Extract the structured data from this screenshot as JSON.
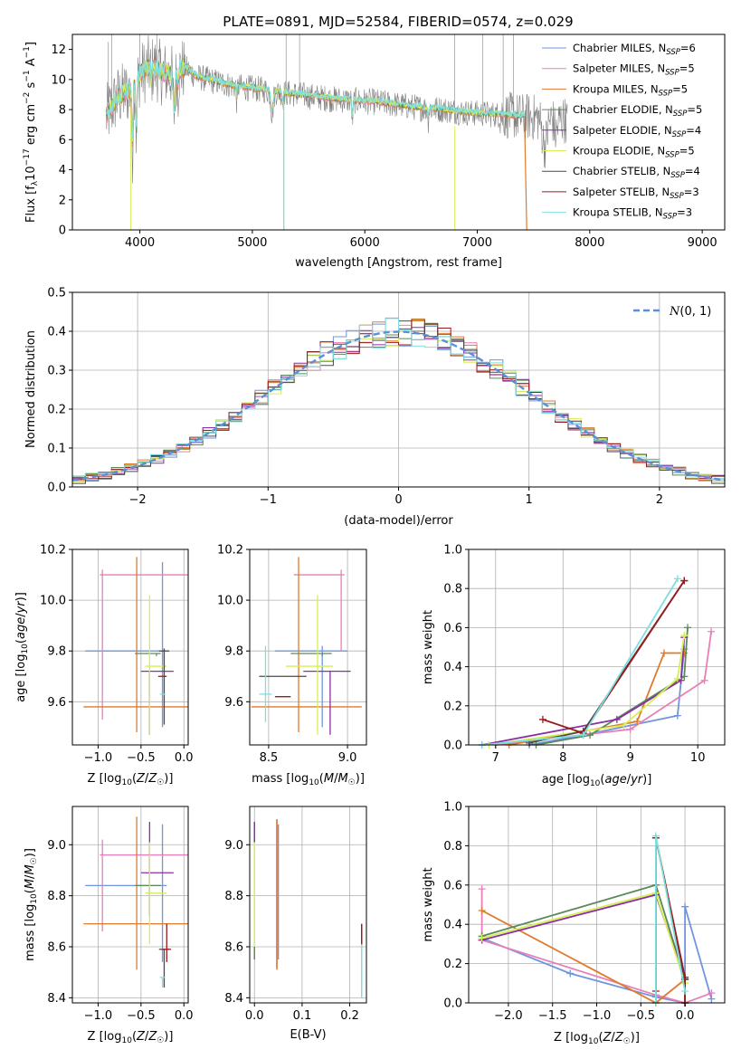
{
  "figure_title": "PLATE=0891, MJD=52584, FIBERID=0574, z=0.029",
  "colors": {
    "chabrier_miles": "#6f95e0",
    "salpeter_miles": "#e87fb8",
    "kroupa_miles": "#e07a2c",
    "chabrier_elodie": "#5a8a5a",
    "salpeter_elodie": "#8b2fa5",
    "kroupa_elodie": "#d6ef53",
    "chabrier_stelib": "#4a4a4a",
    "salpeter_stelib": "#9b1b1b",
    "kroupa_stelib": "#7fdfe0",
    "data_gray": "#808080",
    "normal_curve": "#5b8fd6",
    "grid": "#b0b0b0"
  },
  "chart_data": [
    {
      "id": "spectrum",
      "type": "line",
      "xlabel": "wavelength [Angstrom, rest frame]",
      "ylabel": "Flux [f_λ 10^-17 erg cm^-2 s^-1 A^-1]",
      "xlim": [
        3400,
        9200
      ],
      "ylim": [
        0,
        13
      ],
      "xticks": [
        "4000",
        "5000",
        "6000",
        "7000",
        "8000",
        "9000"
      ],
      "yticks": [
        "0",
        "2",
        "4",
        "6",
        "8",
        "10",
        "12"
      ],
      "grid": false,
      "legend_position": "top-right",
      "legend": [
        {
          "text": "Chabrier MILES, N",
          "sub": "SSP",
          "tail": "=6",
          "color_key": "chabrier_miles"
        },
        {
          "text": "Salpeter MILES, N",
          "sub": "SSP",
          "tail": "=5",
          "color_key": "salpeter_miles"
        },
        {
          "text": "Kroupa MILES, N",
          "sub": "SSP",
          "tail": "=5",
          "color_key": "kroupa_miles"
        },
        {
          "text": "Chabrier ELODIE, N",
          "sub": "SSP",
          "tail": "=5",
          "color_key": "chabrier_elodie"
        },
        {
          "text": "Salpeter ELODIE, N",
          "sub": "SSP",
          "tail": "=4",
          "color_key": "salpeter_elodie"
        },
        {
          "text": "Kroupa ELODIE, N",
          "sub": "SSP",
          "tail": "=5",
          "color_key": "kroupa_elodie"
        },
        {
          "text": "Chabrier STELIB, N",
          "sub": "SSP",
          "tail": "=4",
          "color_key": "chabrier_stelib"
        },
        {
          "text": "Salpeter STELIB, N",
          "sub": "SSP",
          "tail": "=3",
          "color_key": "salpeter_stelib"
        },
        {
          "text": "Kroupa STELIB, N",
          "sub": "SSP",
          "tail": "=3",
          "color_key": "kroupa_stelib"
        }
      ],
      "continuum": {
        "x": [
          3700,
          3800,
          3900,
          3950,
          4000,
          4100,
          4200,
          4300,
          4400,
          4500,
          4700,
          4900,
          5100,
          5300,
          5500,
          5700,
          5900,
          6100,
          6300,
          6500,
          6700,
          6900,
          7100,
          7300,
          7450,
          7600,
          7700,
          7800
        ],
        "y": [
          7.5,
          8.8,
          9.2,
          9.5,
          10.3,
          10.9,
          10.4,
          10.3,
          10.8,
          10.2,
          9.8,
          9.5,
          9.3,
          9.1,
          8.9,
          8.7,
          8.6,
          8.5,
          8.3,
          8.1,
          8.0,
          7.8,
          7.7,
          7.6,
          7.5,
          7.45,
          7.4,
          7.3
        ]
      }
    },
    {
      "id": "residuals",
      "type": "step-histogram",
      "xlabel": "(data-model)/error",
      "ylabel": "Normed distribution",
      "xlim": [
        -2.5,
        2.5
      ],
      "ylim": [
        0,
        0.5
      ],
      "xticks": [
        "−2",
        "−1",
        "0",
        "1",
        "2"
      ],
      "yticks": [
        "0.0",
        "0.1",
        "0.2",
        "0.3",
        "0.4",
        "0.5"
      ],
      "grid": true,
      "legend_position": "top-right",
      "legend_label": "N(0, 1)",
      "bin_width": 0.1,
      "reference": "normal distribution mean 0, sigma 1 (dashed)"
    },
    {
      "id": "age-vs-Z",
      "type": "errorbar",
      "xlabel": "Z [log10(Z/Z☉)]",
      "ylabel": "age [log10(age/yr)]",
      "xlim": [
        -1.3,
        0.05
      ],
      "ylim": [
        9.43,
        10.2
      ],
      "xticks": [
        "−1.0",
        "−0.5",
        "0.0"
      ],
      "yticks": [
        "9.6",
        "9.8",
        "10.0",
        "10.2"
      ],
      "grid": true,
      "points": [
        {
          "color_key": "chabrier_miles",
          "x": -0.25,
          "xerr": [
            0.9,
            0.05
          ],
          "y": 9.8,
          "yerr": [
            0.3,
            0.35
          ]
        },
        {
          "color_key": "salpeter_miles",
          "x": -0.95,
          "xerr": [
            0.03,
            1.0
          ],
          "y": 10.1,
          "yerr": [
            0.57,
            0.02
          ]
        },
        {
          "color_key": "kroupa_miles",
          "x": -0.55,
          "xerr": [
            0.62,
            0.63
          ],
          "y": 9.58,
          "yerr": [
            0.1,
            0.59
          ]
        },
        {
          "color_key": "chabrier_elodie",
          "x": -0.32,
          "xerr": [
            0.25,
            0.05
          ],
          "y": 9.79,
          "yerr": [
            0.01,
            0.0
          ]
        },
        {
          "color_key": "salpeter_elodie",
          "x": -0.4,
          "xerr": [
            0.1,
            0.28
          ],
          "y": 9.72,
          "yerr": [
            0.25,
            0.0
          ]
        },
        {
          "color_key": "kroupa_elodie",
          "x": -0.4,
          "xerr": [
            0.05,
            0.2
          ],
          "y": 9.74,
          "yerr": [
            0.27,
            0.28
          ]
        },
        {
          "color_key": "chabrier_stelib",
          "x": -0.23,
          "xerr": [
            0.06,
            0.06
          ],
          "y": 9.8,
          "yerr": [
            0.29,
            0.01
          ]
        },
        {
          "color_key": "salpeter_stelib",
          "x": -0.25,
          "xerr": [
            0.05,
            0.05
          ],
          "y": 9.7,
          "yerr": [
            0.0,
            0.0
          ]
        },
        {
          "color_key": "kroupa_stelib",
          "x": -0.25,
          "xerr": [
            0.03,
            0.03
          ],
          "y": 9.63,
          "yerr": [
            0.0,
            0.0
          ]
        }
      ]
    },
    {
      "id": "age-vs-mass",
      "type": "errorbar",
      "xlabel": "mass [log10(M/M☉)]",
      "ylabel": "",
      "xlim": [
        8.38,
        9.12
      ],
      "ylim": [
        9.43,
        10.2
      ],
      "xticks": [
        "8.5",
        "9.0"
      ],
      "yticks": [
        "9.6",
        "9.8",
        "10.0",
        "10.2"
      ],
      "grid": true,
      "points": [
        {
          "color_key": "chabrier_miles",
          "x": 8.84,
          "xerr": [
            0.3,
            0.16
          ],
          "y": 9.8,
          "yerr": [
            0.3,
            0.02
          ]
        },
        {
          "color_key": "salpeter_miles",
          "x": 8.96,
          "xerr": [
            0.3,
            0.02
          ],
          "y": 10.1,
          "yerr": [
            0.3,
            0.02
          ]
        },
        {
          "color_key": "kroupa_miles",
          "x": 8.69,
          "xerr": [
            0.3,
            0.4
          ],
          "y": 9.58,
          "yerr": [
            0.1,
            0.59
          ]
        },
        {
          "color_key": "chabrier_elodie",
          "x": 8.84,
          "xerr": [
            0.2,
            0.06
          ],
          "y": 9.79,
          "yerr": [
            0.01,
            0.0
          ]
        },
        {
          "color_key": "salpeter_elodie",
          "x": 8.89,
          "xerr": [
            0.17,
            0.13
          ],
          "y": 9.72,
          "yerr": [
            0.25,
            0.0
          ]
        },
        {
          "color_key": "kroupa_elodie",
          "x": 8.81,
          "xerr": [
            0.2,
            0.1
          ],
          "y": 9.74,
          "yerr": [
            0.27,
            0.28
          ]
        },
        {
          "color_key": "chabrier_stelib",
          "x": 8.59,
          "xerr": [
            0.15,
            0.15
          ],
          "y": 9.7,
          "yerr": [
            0.0,
            0.0
          ]
        },
        {
          "color_key": "salpeter_stelib",
          "x": 8.59,
          "xerr": [
            0.05,
            0.05
          ],
          "y": 9.62,
          "yerr": [
            0.0,
            0.0
          ]
        },
        {
          "color_key": "kroupa_stelib",
          "x": 8.48,
          "xerr": [
            0.04,
            0.04
          ],
          "y": 9.63,
          "yerr": [
            0.11,
            0.19
          ]
        }
      ]
    },
    {
      "id": "mass-weight-vs-age",
      "type": "line",
      "xlabel": "age [log10(age/yr)]",
      "ylabel": "mass weight",
      "xlim": [
        6.6,
        10.4
      ],
      "ylim": [
        0,
        1.0
      ],
      "xticks": [
        "7",
        "8",
        "9",
        "10"
      ],
      "yticks": [
        "0.0",
        "0.2",
        "0.4",
        "0.6",
        "0.8",
        "1.0"
      ],
      "grid": true,
      "series": [
        {
          "color_key": "chabrier_miles",
          "x": [
            7.5,
            8.3,
            9.7,
            9.8
          ],
          "y": [
            0.0,
            0.05,
            0.15,
            0.49
          ]
        },
        {
          "color_key": "salpeter_miles",
          "x": [
            7.0,
            9.0,
            10.1,
            10.2
          ],
          "y": [
            0.0,
            0.08,
            0.33,
            0.58
          ]
        },
        {
          "color_key": "kroupa_miles",
          "x": [
            7.2,
            9.1,
            9.5,
            9.8
          ],
          "y": [
            0.0,
            0.12,
            0.47,
            0.47
          ]
        },
        {
          "color_key": "chabrier_elodie",
          "x": [
            7.6,
            8.4,
            9.8,
            9.85
          ],
          "y": [
            0.0,
            0.05,
            0.35,
            0.6
          ]
        },
        {
          "color_key": "salpeter_elodie",
          "x": [
            6.8,
            8.8,
            9.75,
            9.8
          ],
          "y": [
            0.0,
            0.13,
            0.33,
            0.55
          ]
        },
        {
          "color_key": "kroupa_elodie",
          "x": [
            6.9,
            8.9,
            9.7,
            9.8
          ],
          "y": [
            0.0,
            0.1,
            0.34,
            0.56
          ]
        },
        {
          "color_key": "chabrier_stelib",
          "x": [
            7.5,
            8.3,
            9.8
          ],
          "y": [
            0.01,
            0.07,
            0.84
          ]
        },
        {
          "color_key": "salpeter_stelib",
          "x": [
            7.7,
            8.3,
            9.8
          ],
          "y": [
            0.13,
            0.06,
            0.84
          ]
        },
        {
          "color_key": "kroupa_stelib",
          "x": [
            6.8,
            8.3,
            9.7
          ],
          "y": [
            0.0,
            0.05,
            0.85
          ]
        }
      ]
    },
    {
      "id": "mass-vs-Z",
      "type": "errorbar",
      "xlabel": "Z [log10(Z/Z☉)]",
      "ylabel": "mass [log10(M/M☉)]",
      "xlim": [
        -1.3,
        0.05
      ],
      "ylim": [
        8.38,
        9.15
      ],
      "xticks": [
        "−1.0",
        "−0.5",
        "0.0"
      ],
      "yticks": [
        "8.4",
        "8.6",
        "8.8",
        "9.0"
      ],
      "grid": true,
      "points": [
        {
          "color_key": "chabrier_miles",
          "x": -0.25,
          "xerr": [
            0.9,
            0.05
          ],
          "y": 8.84,
          "yerr": [
            0.3,
            0.24
          ]
        },
        {
          "color_key": "salpeter_miles",
          "x": -0.95,
          "xerr": [
            0.03,
            1.0
          ],
          "y": 8.96,
          "yerr": [
            0.3,
            0.06
          ]
        },
        {
          "color_key": "kroupa_miles",
          "x": -0.55,
          "xerr": [
            0.62,
            0.63
          ],
          "y": 8.69,
          "yerr": [
            0.18,
            0.42
          ]
        },
        {
          "color_key": "chabrier_elodie",
          "x": -0.32,
          "xerr": [
            0.25,
            0.05
          ],
          "y": 8.84,
          "yerr": [
            0.0,
            0.0
          ]
        },
        {
          "color_key": "salpeter_elodie",
          "x": -0.4,
          "xerr": [
            0.1,
            0.28
          ],
          "y": 8.89,
          "yerr": [
            0.17,
            0.2
          ]
        },
        {
          "color_key": "kroupa_elodie",
          "x": -0.4,
          "xerr": [
            0.05,
            0.2
          ],
          "y": 8.81,
          "yerr": [
            0.2,
            0.2
          ]
        },
        {
          "color_key": "chabrier_stelib",
          "x": -0.23,
          "xerr": [
            0.06,
            0.06
          ],
          "y": 8.59,
          "yerr": [
            0.15,
            0.0
          ]
        },
        {
          "color_key": "salpeter_stelib",
          "x": -0.2,
          "xerr": [
            0.05,
            0.05
          ],
          "y": 8.59,
          "yerr": [
            0.05,
            0.1
          ]
        },
        {
          "color_key": "kroupa_stelib",
          "x": -0.25,
          "xerr": [
            0.03,
            0.03
          ],
          "y": 8.48,
          "yerr": [
            0.04,
            0.0
          ]
        }
      ]
    },
    {
      "id": "mass-vs-ebv",
      "type": "errorbar",
      "xlabel": "E(B-V)",
      "ylabel": "",
      "xlim": [
        -0.01,
        0.235
      ],
      "ylim": [
        8.38,
        9.15
      ],
      "xticks": [
        "0.0",
        "0.1",
        "0.2"
      ],
      "yticks": [
        "8.4",
        "8.6",
        "8.8",
        "9.0"
      ],
      "grid": true,
      "points": [
        {
          "color_key": "chabrier_miles",
          "x": 0.05,
          "yerr": [
            8.55,
            9.08
          ]
        },
        {
          "color_key": "salpeter_miles",
          "x": 0.047,
          "yerr": [
            8.52,
            9.1
          ]
        },
        {
          "color_key": "kroupa_miles",
          "x": 0.047,
          "yerr": [
            8.51,
            9.1
          ]
        },
        {
          "color_key": "salpeter_elodie",
          "x": 0.0,
          "yerr": [
            8.7,
            9.09
          ]
        },
        {
          "color_key": "kroupa_elodie",
          "x": 0.0,
          "yerr": [
            8.55,
            9.01
          ]
        },
        {
          "color_key": "chabrier_elodie",
          "x": 0.0,
          "yerr": [
            8.55,
            8.6
          ]
        },
        {
          "color_key": "chabrier_stelib",
          "x": 0.225,
          "yerr": [
            8.44,
            8.61
          ]
        },
        {
          "color_key": "salpeter_stelib",
          "x": 0.225,
          "yerr": [
            8.52,
            8.69
          ]
        },
        {
          "color_key": "kroupa_stelib",
          "x": 0.225,
          "yerr": [
            8.4,
            8.61
          ]
        }
      ]
    },
    {
      "id": "mass-weight-vs-Z",
      "type": "line",
      "xlabel": "Z [log10(Z/Z☉)]",
      "ylabel": "mass weight",
      "xlim": [
        -2.45,
        0.45
      ],
      "ylim": [
        0,
        1.0
      ],
      "xticks": [
        "−2.0",
        "−1.5",
        "−1.0",
        "−0.5",
        "0.0"
      ],
      "yticks": [
        "0.0",
        "0.2",
        "0.4",
        "0.6",
        "0.8",
        "1.0"
      ],
      "grid": true,
      "series": [
        {
          "color_key": "chabrier_miles",
          "x": [
            -2.3,
            -1.3,
            -0.33,
            0.0,
            0.0,
            0.3
          ],
          "y": [
            0.33,
            0.15,
            0.03,
            0.0,
            0.49,
            0.02
          ]
        },
        {
          "color_key": "salpeter_miles",
          "x": [
            -2.3,
            -2.3,
            -0.33,
            0.0,
            0.3
          ],
          "y": [
            0.58,
            0.32,
            0.04,
            0.0,
            0.05
          ]
        },
        {
          "color_key": "kroupa_miles",
          "x": [
            -2.3,
            -0.33,
            0.0,
            0.0
          ],
          "y": [
            0.47,
            0.0,
            0.12,
            0.0
          ]
        },
        {
          "color_key": "chabrier_elodie",
          "x": [
            -2.3,
            -0.33,
            0.0,
            0.0
          ],
          "y": [
            0.34,
            0.6,
            0.12,
            0.0
          ]
        },
        {
          "color_key": "salpeter_elodie",
          "x": [
            -2.3,
            -0.33,
            0.0,
            0.0
          ],
          "y": [
            0.32,
            0.55,
            0.12,
            0.0
          ]
        },
        {
          "color_key": "kroupa_elodie",
          "x": [
            -2.3,
            -0.33,
            0.0,
            0.0
          ],
          "y": [
            0.33,
            0.56,
            0.1,
            0.0
          ]
        },
        {
          "color_key": "chabrier_stelib",
          "x": [
            -0.33,
            -0.33,
            0.0,
            0.0
          ],
          "y": [
            0.0,
            0.84,
            0.12,
            0.0
          ]
        },
        {
          "color_key": "salpeter_stelib",
          "x": [
            -0.33,
            -0.33,
            0.0,
            0.0
          ],
          "y": [
            0.06,
            0.84,
            0.13,
            0.0
          ]
        },
        {
          "color_key": "kroupa_stelib",
          "x": [
            -0.33,
            -0.33,
            0.0
          ],
          "y": [
            0.0,
            0.85,
            0.06
          ]
        }
      ]
    }
  ]
}
